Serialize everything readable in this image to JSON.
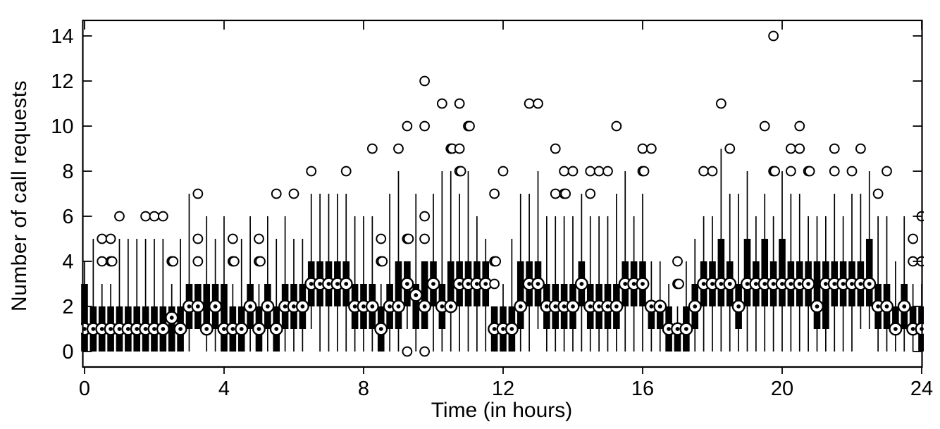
{
  "chart_data": {
    "type": "boxplot",
    "style": "matlab-compact-boxplot",
    "title": "",
    "xlabel": "Time (in hours)",
    "ylabel": "Number of call requests",
    "x_ticks": [
      0,
      4,
      8,
      12,
      16,
      20,
      24
    ],
    "y_ticks": [
      0,
      2,
      4,
      6,
      8,
      10,
      12,
      14
    ],
    "xlim": [
      -0.05,
      24.01
    ],
    "ylim": [
      -0.6875,
      14.6875
    ],
    "grid": false,
    "legend": "none",
    "interval_hours": 0.25,
    "colors": {
      "box": "#000000",
      "marker_fill": "#ffffff",
      "background": "#ffffff"
    },
    "columns": [
      "t",
      "q1",
      "q3",
      "median",
      "whisker_low",
      "whisker_high",
      "outliers"
    ],
    "boxes": [
      [
        0.0,
        0,
        3,
        1,
        0,
        4,
        []
      ],
      [
        0.25,
        0,
        2,
        1,
        0,
        5,
        []
      ],
      [
        0.5,
        0,
        2,
        1,
        0,
        3,
        [
          4,
          5
        ]
      ],
      [
        0.75,
        0,
        2,
        1,
        0,
        3,
        [
          4,
          4,
          5
        ]
      ],
      [
        1.0,
        0,
        2,
        1,
        0,
        5,
        [
          6
        ]
      ],
      [
        1.25,
        0,
        2,
        1,
        0,
        5,
        []
      ],
      [
        1.5,
        0,
        2,
        1,
        0,
        5,
        []
      ],
      [
        1.75,
        0,
        2,
        1,
        0,
        5,
        [
          6
        ]
      ],
      [
        2.0,
        0,
        2,
        1,
        0,
        5,
        [
          6
        ]
      ],
      [
        2.25,
        0,
        2,
        1,
        0,
        5,
        [
          6
        ]
      ],
      [
        2.5,
        0,
        2,
        1.5,
        0,
        3,
        [
          4,
          4
        ]
      ],
      [
        2.75,
        0,
        2,
        1,
        0,
        5,
        []
      ],
      [
        3.0,
        1,
        3,
        2,
        0,
        7,
        []
      ],
      [
        3.25,
        1,
        3,
        2,
        1,
        3,
        [
          4,
          5,
          7
        ]
      ],
      [
        3.5,
        1,
        3,
        1,
        0,
        6,
        []
      ],
      [
        3.75,
        1,
        3,
        2,
        0,
        5,
        []
      ],
      [
        4.0,
        0,
        3,
        1,
        0,
        6,
        []
      ],
      [
        4.25,
        0,
        2,
        1,
        0,
        3,
        [
          4,
          4,
          5
        ]
      ],
      [
        4.5,
        0,
        2,
        1,
        0,
        5,
        []
      ],
      [
        4.75,
        1,
        3,
        2,
        0,
        6,
        []
      ],
      [
        5.0,
        0,
        2,
        1,
        0,
        3,
        [
          4,
          4,
          5
        ]
      ],
      [
        5.25,
        1,
        3,
        2,
        0,
        6,
        []
      ],
      [
        5.5,
        0,
        2,
        1,
        0,
        5,
        [
          7
        ]
      ],
      [
        5.75,
        1,
        3,
        2,
        0,
        6,
        []
      ],
      [
        6.0,
        1,
        3,
        2,
        0,
        5,
        [
          7
        ]
      ],
      [
        6.25,
        1,
        3,
        2,
        0,
        5,
        []
      ],
      [
        6.5,
        2,
        4,
        3,
        1,
        7,
        [
          8
        ]
      ],
      [
        6.75,
        2,
        4,
        3,
        0,
        7,
        []
      ],
      [
        7.0,
        2,
        4,
        3,
        0,
        7,
        []
      ],
      [
        7.25,
        2,
        4,
        3,
        0,
        7,
        []
      ],
      [
        7.5,
        2,
        4,
        3,
        0,
        7,
        [
          8
        ]
      ],
      [
        7.75,
        1,
        3,
        2,
        0,
        6,
        []
      ],
      [
        8.0,
        1,
        3,
        2,
        0,
        6,
        []
      ],
      [
        8.25,
        1,
        3,
        2,
        0,
        6,
        [
          9
        ]
      ],
      [
        8.5,
        0,
        2,
        1,
        0,
        3,
        [
          4,
          4,
          5
        ]
      ],
      [
        8.75,
        1,
        3,
        2,
        0,
        7,
        []
      ],
      [
        9.0,
        1,
        4,
        2,
        0,
        8,
        [
          9
        ]
      ],
      [
        9.25,
        2,
        4,
        3,
        1,
        4,
        [
          0,
          5,
          5,
          10
        ]
      ],
      [
        9.5,
        1,
        3,
        2.5,
        0,
        7,
        []
      ],
      [
        9.75,
        1,
        4,
        2,
        1,
        4,
        [
          0,
          5,
          6,
          10,
          12
        ]
      ],
      [
        10.0,
        2,
        4,
        3,
        0,
        7,
        []
      ],
      [
        10.25,
        1,
        3,
        2,
        0,
        8,
        [
          11
        ]
      ],
      [
        10.5,
        2,
        4,
        2,
        0,
        8,
        [
          9,
          9
        ]
      ],
      [
        10.75,
        2,
        4,
        3,
        0,
        7,
        [
          8,
          8,
          9,
          11
        ]
      ],
      [
        11.0,
        2,
        4,
        3,
        0,
        8,
        [
          10,
          10
        ]
      ],
      [
        11.25,
        2,
        4,
        3,
        0,
        6,
        []
      ],
      [
        11.5,
        2,
        4,
        3,
        0,
        5,
        []
      ],
      [
        11.75,
        0,
        2,
        1,
        0,
        2,
        [
          3,
          4,
          4,
          7
        ]
      ],
      [
        12.0,
        0,
        2,
        1,
        0,
        3,
        [
          8
        ]
      ],
      [
        12.25,
        0,
        2,
        1,
        0,
        5,
        []
      ],
      [
        12.5,
        1,
        4,
        2,
        0,
        7,
        []
      ],
      [
        12.75,
        2,
        4,
        3,
        0,
        7,
        [
          11
        ]
      ],
      [
        13.0,
        2,
        4,
        3,
        1,
        8,
        [
          11
        ]
      ],
      [
        13.25,
        1,
        3,
        2,
        0,
        6,
        []
      ],
      [
        13.5,
        1,
        3,
        2,
        0,
        6,
        [
          7,
          9
        ]
      ],
      [
        13.75,
        1,
        3,
        2,
        0,
        6,
        [
          7,
          7,
          8
        ]
      ],
      [
        14.0,
        1,
        3,
        2,
        0,
        6,
        [
          8
        ]
      ],
      [
        14.25,
        2,
        4,
        3,
        0,
        7,
        []
      ],
      [
        14.5,
        1,
        3,
        2,
        0,
        6,
        [
          7,
          8
        ]
      ],
      [
        14.75,
        1,
        3,
        2,
        0,
        6,
        [
          8
        ]
      ],
      [
        15.0,
        1,
        3,
        2,
        0,
        6,
        [
          8
        ]
      ],
      [
        15.25,
        1,
        3,
        2,
        0,
        7,
        [
          10
        ]
      ],
      [
        15.5,
        2,
        4,
        3,
        0,
        8,
        []
      ],
      [
        15.75,
        2,
        4,
        3,
        0,
        6,
        []
      ],
      [
        16.0,
        2,
        4,
        3,
        0,
        7,
        [
          8,
          8,
          9
        ]
      ],
      [
        16.25,
        1,
        2,
        2,
        0,
        4,
        [
          9
        ]
      ],
      [
        16.5,
        1,
        2,
        2,
        0,
        4,
        []
      ],
      [
        16.75,
        0,
        2,
        1,
        0,
        3,
        []
      ],
      [
        17.0,
        0,
        1,
        1,
        0,
        2,
        [
          3,
          3,
          4
        ]
      ],
      [
        17.25,
        0,
        2,
        1,
        0,
        4,
        []
      ],
      [
        17.5,
        1,
        3,
        2,
        0,
        5,
        []
      ],
      [
        17.75,
        2,
        4,
        3,
        0,
        6,
        [
          8
        ]
      ],
      [
        18.0,
        2,
        4,
        3,
        0,
        6,
        [
          8
        ]
      ],
      [
        18.25,
        2,
        5,
        3,
        0,
        9,
        [
          11
        ]
      ],
      [
        18.5,
        2,
        4,
        3,
        0,
        7,
        [
          9
        ]
      ],
      [
        18.75,
        1,
        3,
        2,
        0,
        7,
        []
      ],
      [
        19.0,
        2,
        5,
        3,
        0,
        8,
        []
      ],
      [
        19.25,
        2,
        4,
        3,
        0,
        6,
        []
      ],
      [
        19.5,
        2,
        5,
        3,
        0,
        7,
        [
          10
        ]
      ],
      [
        19.75,
        2,
        4,
        3,
        0,
        6,
        [
          8,
          8,
          14
        ]
      ],
      [
        20.0,
        2,
        5,
        3,
        0,
        8,
        []
      ],
      [
        20.25,
        2,
        4,
        3,
        0,
        7,
        [
          8,
          9
        ]
      ],
      [
        20.5,
        2,
        4,
        3,
        0,
        7,
        [
          9,
          10
        ]
      ],
      [
        20.75,
        2,
        4,
        3,
        0,
        6,
        [
          8,
          8
        ]
      ],
      [
        21.0,
        1,
        4,
        2,
        0,
        6,
        []
      ],
      [
        21.25,
        1,
        4,
        3,
        0,
        6,
        []
      ],
      [
        21.5,
        2,
        4,
        3,
        0,
        7,
        [
          8,
          9
        ]
      ],
      [
        21.75,
        2,
        4,
        3,
        0,
        6,
        []
      ],
      [
        22.0,
        2,
        4,
        3,
        0,
        7,
        [
          8
        ]
      ],
      [
        22.25,
        2,
        4,
        3,
        1,
        7,
        [
          9
        ]
      ],
      [
        22.5,
        2,
        5,
        3,
        1,
        8,
        []
      ],
      [
        22.75,
        1,
        3,
        2,
        0,
        6,
        [
          7
        ]
      ],
      [
        23.0,
        1,
        3,
        2,
        0,
        6,
        [
          8
        ]
      ],
      [
        23.25,
        1,
        2,
        1,
        0,
        4,
        []
      ],
      [
        23.5,
        1,
        3,
        2,
        0,
        6,
        []
      ],
      [
        23.75,
        1,
        2,
        1,
        0,
        3,
        [
          4,
          5
        ]
      ],
      [
        24.0,
        0,
        2,
        1,
        0,
        3,
        [
          4,
          6
        ]
      ]
    ]
  }
}
